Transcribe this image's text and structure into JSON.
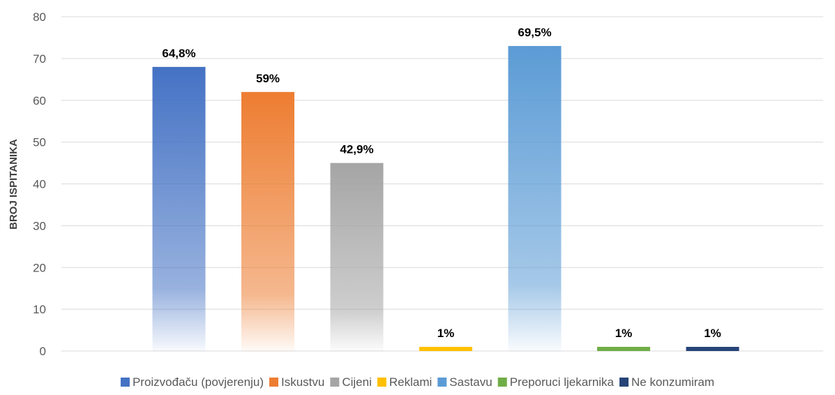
{
  "chart_data": {
    "type": "bar",
    "ylabel": "BROJ ISPITANIKA",
    "xlabel": "",
    "ylim": [
      0,
      80
    ],
    "yticks": [
      "0",
      "10",
      "20",
      "30",
      "40",
      "50",
      "60",
      "70",
      "80"
    ],
    "grid": true,
    "legend_position": "bottom",
    "series": [
      {
        "name": "Proizvođaču (povjerenju)",
        "value": 68,
        "label": "64,8%",
        "color": "#4472c4"
      },
      {
        "name": "Iskustvu",
        "value": 62,
        "label": "59%",
        "color": "#ed7d31"
      },
      {
        "name": "Cijeni",
        "value": 45,
        "label": "42,9%",
        "color": "#a5a5a5"
      },
      {
        "name": "Reklami",
        "value": 1,
        "label": "1%",
        "color": "#ffc000"
      },
      {
        "name": "Sastavu",
        "value": 73,
        "label": "69,5%",
        "color": "#5b9bd5"
      },
      {
        "name": "Preporuci ljekarnika",
        "value": 1,
        "label": "1%",
        "color": "#70ad47"
      },
      {
        "name": "Ne konzumiram",
        "value": 1,
        "label": "1%",
        "color": "#264478"
      }
    ]
  }
}
